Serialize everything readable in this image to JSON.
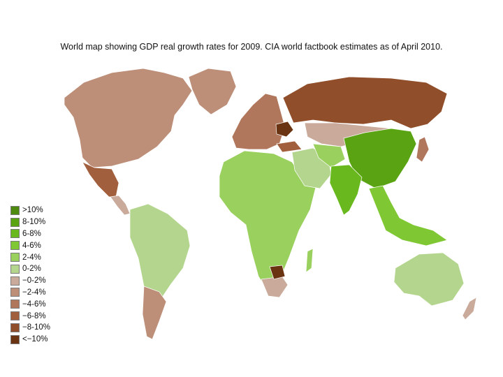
{
  "title": "World map showing GDP real growth rates for 2009. CIA world factbook estimates as of April 2010.",
  "legend": [
    {
      "label": ">10%",
      "color": "#4f8a10"
    },
    {
      "label": "8-10%",
      "color": "#5aa414"
    },
    {
      "label": "6-8%",
      "color": "#68b81e"
    },
    {
      "label": "4-6%",
      "color": "#7fc833"
    },
    {
      "label": "2-4%",
      "color": "#9ad05e"
    },
    {
      "label": "0-2%",
      "color": "#b3d58d"
    },
    {
      "label": "−0-2%",
      "color": "#c9aa9b"
    },
    {
      "label": "−2-4%",
      "color": "#bd8f78"
    },
    {
      "label": "−4-6%",
      "color": "#b0775c"
    },
    {
      "label": "−6-8%",
      "color": "#a25f3e"
    },
    {
      "label": "−8-10%",
      "color": "#904e2a"
    },
    {
      "label": "<−10%",
      "color": "#6a3413"
    }
  ],
  "regions": [
    {
      "name": "North America",
      "category": "−2-4%"
    },
    {
      "name": "Greenland",
      "category": "−2-4%"
    },
    {
      "name": "Mexico",
      "category": "−6-8%"
    },
    {
      "name": "South America",
      "category": "0-2%"
    },
    {
      "name": "Argentina / Chile",
      "category": "−2-4%"
    },
    {
      "name": "Africa",
      "category": "2-4%"
    },
    {
      "name": "Botswana",
      "category": "<−10%"
    },
    {
      "name": "Europe",
      "category": "−4-6%"
    },
    {
      "name": "Russia",
      "category": "−8-10%"
    },
    {
      "name": "Ukraine",
      "category": "<−10%"
    },
    {
      "name": "Kazakhstan / Mongolia",
      "category": "−0-2%"
    },
    {
      "name": "China",
      "category": "8-10%"
    },
    {
      "name": "India",
      "category": "6-8%"
    },
    {
      "name": "Middle East",
      "category": "0-2%"
    },
    {
      "name": "Japan",
      "category": "−4-6%"
    },
    {
      "name": "Southeast Asia",
      "category": "4-6%"
    },
    {
      "name": "Australia",
      "category": "0-2%"
    },
    {
      "name": "New Zealand",
      "category": "−0-2%"
    }
  ]
}
